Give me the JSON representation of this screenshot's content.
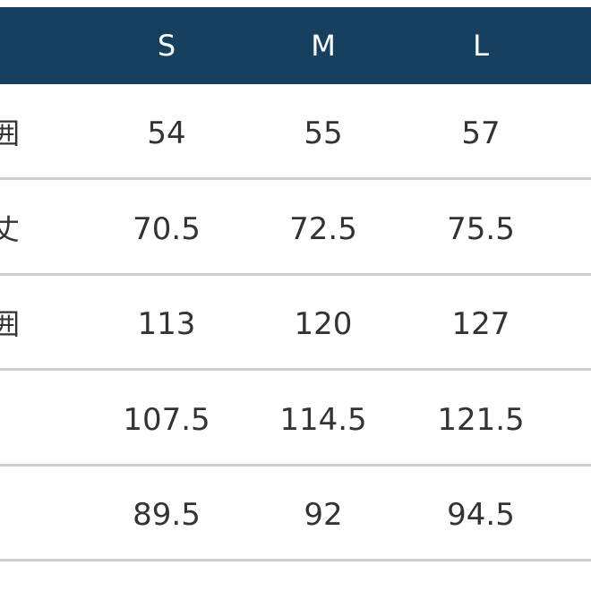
{
  "table": {
    "header_color": "#173f5f",
    "columns": [
      "S",
      "M",
      "L"
    ],
    "rows": [
      {
        "label": "囲",
        "values": [
          "54",
          "55",
          "57"
        ]
      },
      {
        "label": "丈",
        "values": [
          "70.5",
          "72.5",
          "75.5"
        ]
      },
      {
        "label": "囲",
        "values": [
          "113",
          "120",
          "127"
        ]
      },
      {
        "label": "",
        "values": [
          "107.5",
          "114.5",
          "121.5"
        ]
      },
      {
        "label": "",
        "values": [
          "89.5",
          "92",
          "94.5"
        ]
      }
    ]
  }
}
